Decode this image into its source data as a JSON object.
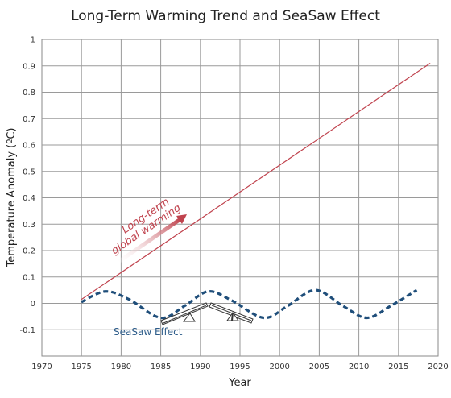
{
  "chart_data": {
    "type": "line",
    "title": "Long-Term Warming Trend and SeaSaw Effect",
    "xlabel": "Year",
    "ylabel": "Temperature Anomaly (ºC)",
    "xlim": [
      1970,
      2020
    ],
    "ylim": [
      -0.2,
      1.0
    ],
    "xticks": [
      "1970",
      "1975",
      "1980",
      "1985",
      "1990",
      "1995",
      "2000",
      "2005",
      "2010",
      "2015",
      "2020"
    ],
    "yticks": [
      "-0.1",
      "0",
      "0.1",
      "0.2",
      "0.3",
      "0.4",
      "0.5",
      "0.6",
      "0.7",
      "0.8",
      "0.9",
      "1"
    ],
    "grid": true,
    "series": [
      {
        "style": "solid",
        "color": "#c0434e",
        "x": [
          1975,
          2019
        ],
        "y": [
          0.015,
          0.91
        ]
      },
      {
        "style": "dashed",
        "color": "#1f4e7a",
        "x": [
          1975,
          1978,
          1981,
          1985,
          1988,
          1991,
          1994,
          1998,
          2001,
          2004.5,
          2008,
          2011,
          2014,
          2017.3
        ],
        "y": [
          0.005,
          0.045,
          0.015,
          -0.055,
          -0.01,
          0.045,
          0.01,
          -0.055,
          -0.01,
          0.05,
          -0.01,
          -0.055,
          -0.01,
          0.05
        ]
      }
    ],
    "annotations": {
      "warming_line1": "Long-term",
      "warming_line2": "global warming",
      "seasaw": "SeaSaw Effect"
    }
  }
}
